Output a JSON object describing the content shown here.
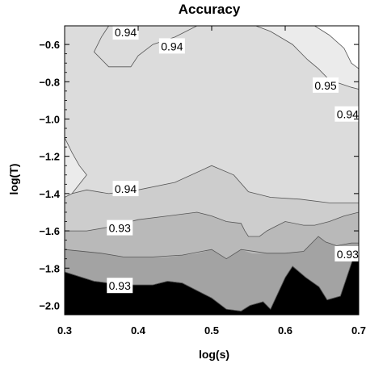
{
  "chart_data": {
    "type": "contour",
    "title": "Accuracy",
    "xlabel": "log(s)",
    "ylabel": "log(T)",
    "xlim": [
      0.3,
      0.7
    ],
    "ylim": [
      -2.05,
      -0.5
    ],
    "x_ticks": [
      0.3,
      0.4,
      0.5,
      0.6,
      0.7
    ],
    "x_tick_labels": [
      "0.3",
      "0.4",
      "0.5",
      "0.6",
      "0.7"
    ],
    "y_ticks": [
      -0.6,
      -0.8,
      -1.0,
      -1.2,
      -1.4,
      -1.6,
      -1.8,
      -2.0
    ],
    "y_tick_labels": [
      "−0.6",
      "−0.8",
      "−1.0",
      "−1.2",
      "−1.4",
      "−1.6",
      "−1.8",
      "−2.0"
    ],
    "colors": {
      "band_lowest": "#000000",
      "band_2": "#a3a3a3",
      "band_3": "#b9b9b9",
      "band_4": "#cdcdcd",
      "band_5": "#dcdcdc",
      "band_6": "#ebebeb",
      "band_highest": "#ffffff",
      "contour_line": "#555555"
    },
    "bands": [
      {
        "color_key": "band_lowest",
        "points": [
          [
            0.3,
            -2.05
          ],
          [
            0.7,
            -2.05
          ],
          [
            0.7,
            -1.74
          ],
          [
            0.693,
            -1.74
          ],
          [
            0.675,
            -1.95
          ],
          [
            0.657,
            -1.97
          ],
          [
            0.646,
            -1.9
          ],
          [
            0.628,
            -1.85
          ],
          [
            0.61,
            -1.79
          ],
          [
            0.6,
            -1.85
          ],
          [
            0.58,
            -2.02
          ],
          [
            0.57,
            -1.98
          ],
          [
            0.552,
            -2.0
          ],
          [
            0.54,
            -2.03
          ],
          [
            0.52,
            -2.02
          ],
          [
            0.5,
            -1.96
          ],
          [
            0.48,
            -1.92
          ],
          [
            0.46,
            -1.88
          ],
          [
            0.44,
            -1.87
          ],
          [
            0.42,
            -1.89
          ],
          [
            0.38,
            -1.89
          ],
          [
            0.34,
            -1.87
          ],
          [
            0.3,
            -1.82
          ]
        ]
      },
      {
        "color_key": "band_2",
        "points": [
          [
            0.3,
            -1.82
          ],
          [
            0.34,
            -1.87
          ],
          [
            0.38,
            -1.89
          ],
          [
            0.42,
            -1.89
          ],
          [
            0.44,
            -1.87
          ],
          [
            0.46,
            -1.88
          ],
          [
            0.48,
            -1.92
          ],
          [
            0.5,
            -1.96
          ],
          [
            0.52,
            -2.02
          ],
          [
            0.54,
            -2.03
          ],
          [
            0.552,
            -2.0
          ],
          [
            0.57,
            -1.98
          ],
          [
            0.58,
            -2.02
          ],
          [
            0.6,
            -1.85
          ],
          [
            0.61,
            -1.79
          ],
          [
            0.628,
            -1.85
          ],
          [
            0.646,
            -1.9
          ],
          [
            0.657,
            -1.97
          ],
          [
            0.675,
            -1.95
          ],
          [
            0.693,
            -1.74
          ],
          [
            0.7,
            -1.74
          ],
          [
            0.7,
            -1.665
          ],
          [
            0.69,
            -1.665
          ],
          [
            0.67,
            -1.68
          ],
          [
            0.655,
            -1.66
          ],
          [
            0.645,
            -1.63
          ],
          [
            0.625,
            -1.71
          ],
          [
            0.6,
            -1.72
          ],
          [
            0.585,
            -1.72
          ],
          [
            0.575,
            -1.72
          ],
          [
            0.555,
            -1.72
          ],
          [
            0.54,
            -1.7
          ],
          [
            0.52,
            -1.75
          ],
          [
            0.5,
            -1.7
          ],
          [
            0.48,
            -1.72
          ],
          [
            0.46,
            -1.73
          ],
          [
            0.44,
            -1.74
          ],
          [
            0.42,
            -1.74
          ],
          [
            0.38,
            -1.74
          ],
          [
            0.35,
            -1.72
          ],
          [
            0.3,
            -1.7
          ]
        ]
      },
      {
        "color_key": "band_3",
        "points": [
          [
            0.3,
            -1.7
          ],
          [
            0.35,
            -1.72
          ],
          [
            0.38,
            -1.74
          ],
          [
            0.42,
            -1.74
          ],
          [
            0.44,
            -1.74
          ],
          [
            0.46,
            -1.73
          ],
          [
            0.48,
            -1.72
          ],
          [
            0.5,
            -1.7
          ],
          [
            0.52,
            -1.75
          ],
          [
            0.54,
            -1.7
          ],
          [
            0.555,
            -1.72
          ],
          [
            0.575,
            -1.72
          ],
          [
            0.585,
            -1.72
          ],
          [
            0.6,
            -1.72
          ],
          [
            0.625,
            -1.71
          ],
          [
            0.645,
            -1.63
          ],
          [
            0.655,
            -1.66
          ],
          [
            0.67,
            -1.68
          ],
          [
            0.69,
            -1.665
          ],
          [
            0.7,
            -1.665
          ],
          [
            0.7,
            -1.5
          ],
          [
            0.68,
            -1.52
          ],
          [
            0.66,
            -1.55
          ],
          [
            0.64,
            -1.57
          ],
          [
            0.625,
            -1.57
          ],
          [
            0.61,
            -1.56
          ],
          [
            0.6,
            -1.55
          ],
          [
            0.585,
            -1.58
          ],
          [
            0.575,
            -1.6
          ],
          [
            0.565,
            -1.63
          ],
          [
            0.55,
            -1.63
          ],
          [
            0.545,
            -1.6
          ],
          [
            0.54,
            -1.56
          ],
          [
            0.52,
            -1.55
          ],
          [
            0.5,
            -1.52
          ],
          [
            0.48,
            -1.5
          ],
          [
            0.44,
            -1.52
          ],
          [
            0.4,
            -1.54
          ],
          [
            0.36,
            -1.58
          ],
          [
            0.33,
            -1.6
          ],
          [
            0.3,
            -1.6
          ]
        ]
      },
      {
        "color_key": "band_4",
        "points": [
          [
            0.3,
            -1.6
          ],
          [
            0.33,
            -1.6
          ],
          [
            0.36,
            -1.58
          ],
          [
            0.4,
            -1.54
          ],
          [
            0.44,
            -1.52
          ],
          [
            0.48,
            -1.5
          ],
          [
            0.5,
            -1.52
          ],
          [
            0.52,
            -1.55
          ],
          [
            0.54,
            -1.56
          ],
          [
            0.545,
            -1.6
          ],
          [
            0.55,
            -1.63
          ],
          [
            0.565,
            -1.63
          ],
          [
            0.575,
            -1.6
          ],
          [
            0.585,
            -1.58
          ],
          [
            0.6,
            -1.55
          ],
          [
            0.61,
            -1.56
          ],
          [
            0.625,
            -1.57
          ],
          [
            0.64,
            -1.57
          ],
          [
            0.66,
            -1.55
          ],
          [
            0.68,
            -1.52
          ],
          [
            0.7,
            -1.5
          ],
          [
            0.7,
            -1.45
          ],
          [
            0.66,
            -1.45
          ],
          [
            0.62,
            -1.43
          ],
          [
            0.58,
            -1.42
          ],
          [
            0.55,
            -1.39
          ],
          [
            0.53,
            -1.3
          ],
          [
            0.5,
            -1.25
          ],
          [
            0.45,
            -1.34
          ],
          [
            0.4,
            -1.38
          ],
          [
            0.36,
            -1.4
          ],
          [
            0.33,
            -1.38
          ],
          [
            0.31,
            -1.4
          ],
          [
            0.3,
            -1.42
          ]
        ]
      },
      {
        "color_key": "band_5",
        "points": [
          [
            0.3,
            -1.42
          ],
          [
            0.31,
            -1.4
          ],
          [
            0.33,
            -1.38
          ],
          [
            0.36,
            -1.4
          ],
          [
            0.4,
            -1.38
          ],
          [
            0.45,
            -1.34
          ],
          [
            0.5,
            -1.25
          ],
          [
            0.53,
            -1.3
          ],
          [
            0.55,
            -1.39
          ],
          [
            0.58,
            -1.42
          ],
          [
            0.62,
            -1.43
          ],
          [
            0.66,
            -1.45
          ],
          [
            0.7,
            -1.45
          ],
          [
            0.7,
            -0.5
          ],
          [
            0.3,
            -0.5
          ]
        ]
      },
      {
        "color_key": "band_6",
        "points": [
          [
            0.3,
            -1.1
          ],
          [
            0.3,
            -1.42
          ],
          [
            0.31,
            -1.4
          ],
          [
            0.33,
            -1.3
          ],
          [
            0.32,
            -1.25
          ],
          [
            0.31,
            -1.18
          ]
        ]
      },
      {
        "color_key": "band_6",
        "points": [
          [
            0.56,
            -0.5
          ],
          [
            0.58,
            -0.53
          ],
          [
            0.61,
            -0.6
          ],
          [
            0.63,
            -0.68
          ],
          [
            0.645,
            -0.73
          ],
          [
            0.66,
            -0.79
          ],
          [
            0.69,
            -0.83
          ],
          [
            0.7,
            -0.84
          ],
          [
            0.7,
            -0.5
          ]
        ]
      },
      {
        "color_key": "band_highest",
        "points": [
          [
            0.64,
            -0.5
          ],
          [
            0.66,
            -0.55
          ],
          [
            0.68,
            -0.62
          ],
          [
            0.69,
            -0.7
          ],
          [
            0.7,
            -0.73
          ],
          [
            0.7,
            -0.5
          ]
        ]
      }
    ],
    "contour_lines": [
      {
        "level": "0.93",
        "points": [
          [
            0.3,
            -1.82
          ],
          [
            0.34,
            -1.87
          ],
          [
            0.38,
            -1.89
          ],
          [
            0.42,
            -1.89
          ],
          [
            0.44,
            -1.87
          ],
          [
            0.46,
            -1.88
          ],
          [
            0.48,
            -1.92
          ],
          [
            0.5,
            -1.96
          ],
          [
            0.52,
            -2.02
          ],
          [
            0.54,
            -2.03
          ],
          [
            0.552,
            -2.0
          ],
          [
            0.57,
            -1.98
          ],
          [
            0.58,
            -2.02
          ],
          [
            0.6,
            -1.85
          ],
          [
            0.61,
            -1.79
          ],
          [
            0.628,
            -1.85
          ],
          [
            0.646,
            -1.9
          ],
          [
            0.657,
            -1.97
          ],
          [
            0.675,
            -1.95
          ],
          [
            0.693,
            -1.74
          ],
          [
            0.7,
            -1.74
          ]
        ]
      },
      {
        "level": "0.93",
        "points": [
          [
            0.3,
            -1.7
          ],
          [
            0.35,
            -1.72
          ],
          [
            0.38,
            -1.74
          ],
          [
            0.42,
            -1.74
          ],
          [
            0.46,
            -1.73
          ],
          [
            0.5,
            -1.7
          ],
          [
            0.52,
            -1.75
          ],
          [
            0.54,
            -1.7
          ],
          [
            0.575,
            -1.72
          ],
          [
            0.6,
            -1.72
          ],
          [
            0.625,
            -1.71
          ],
          [
            0.645,
            -1.63
          ],
          [
            0.655,
            -1.66
          ],
          [
            0.67,
            -1.68
          ],
          [
            0.69,
            -1.665
          ],
          [
            0.7,
            -1.665
          ]
        ]
      },
      {
        "level": "0.93",
        "points": [
          [
            0.3,
            -1.6
          ],
          [
            0.33,
            -1.6
          ],
          [
            0.36,
            -1.58
          ],
          [
            0.4,
            -1.54
          ],
          [
            0.44,
            -1.52
          ],
          [
            0.48,
            -1.5
          ],
          [
            0.5,
            -1.52
          ],
          [
            0.52,
            -1.55
          ],
          [
            0.54,
            -1.56
          ],
          [
            0.545,
            -1.6
          ],
          [
            0.55,
            -1.63
          ],
          [
            0.565,
            -1.63
          ],
          [
            0.575,
            -1.6
          ],
          [
            0.585,
            -1.58
          ],
          [
            0.6,
            -1.55
          ],
          [
            0.625,
            -1.57
          ],
          [
            0.64,
            -1.57
          ],
          [
            0.66,
            -1.55
          ],
          [
            0.68,
            -1.52
          ],
          [
            0.7,
            -1.5
          ]
        ]
      },
      {
        "level": "0.94",
        "points": [
          [
            0.3,
            -1.42
          ],
          [
            0.31,
            -1.4
          ],
          [
            0.33,
            -1.38
          ],
          [
            0.36,
            -1.4
          ],
          [
            0.4,
            -1.38
          ],
          [
            0.45,
            -1.34
          ],
          [
            0.5,
            -1.25
          ],
          [
            0.53,
            -1.3
          ],
          [
            0.55,
            -1.39
          ],
          [
            0.58,
            -1.42
          ],
          [
            0.62,
            -1.43
          ],
          [
            0.66,
            -1.45
          ],
          [
            0.7,
            -1.45
          ]
        ]
      },
      {
        "level": "0.94",
        "points": [
          [
            0.3,
            -1.1
          ],
          [
            0.31,
            -1.18
          ],
          [
            0.32,
            -1.25
          ],
          [
            0.33,
            -1.3
          ],
          [
            0.31,
            -1.4
          ]
        ]
      },
      {
        "level": "0.94",
        "points": [
          [
            0.36,
            -0.5
          ],
          [
            0.35,
            -0.56
          ],
          [
            0.34,
            -0.64
          ],
          [
            0.36,
            -0.72
          ],
          [
            0.39,
            -0.72
          ],
          [
            0.4,
            -0.66
          ],
          [
            0.42,
            -0.6
          ],
          [
            0.45,
            -0.56
          ],
          [
            0.48,
            -0.5
          ]
        ]
      },
      {
        "level": "0.94",
        "points": [
          [
            0.56,
            -0.5
          ],
          [
            0.58,
            -0.53
          ],
          [
            0.61,
            -0.6
          ],
          [
            0.63,
            -0.68
          ],
          [
            0.645,
            -0.73
          ],
          [
            0.66,
            -0.79
          ],
          [
            0.69,
            -0.83
          ],
          [
            0.7,
            -0.84
          ]
        ]
      },
      {
        "level": "0.95",
        "points": [
          [
            0.64,
            -0.5
          ],
          [
            0.66,
            -0.55
          ],
          [
            0.68,
            -0.62
          ],
          [
            0.69,
            -0.7
          ],
          [
            0.7,
            -0.73
          ]
        ]
      }
    ],
    "contour_labels": [
      {
        "text": "0.94",
        "x": 0.383,
        "y": -0.535
      },
      {
        "text": "0.94",
        "x": 0.446,
        "y": -0.61
      },
      {
        "text": "0.95",
        "x": 0.655,
        "y": -0.82
      },
      {
        "text": "0.94",
        "x": 0.685,
        "y": -0.975
      },
      {
        "text": "0.94",
        "x": 0.383,
        "y": -1.375
      },
      {
        "text": "0.93",
        "x": 0.375,
        "y": -1.585
      },
      {
        "text": "0.93",
        "x": 0.685,
        "y": -1.725
      },
      {
        "text": "0.93",
        "x": 0.375,
        "y": -1.895
      }
    ]
  }
}
